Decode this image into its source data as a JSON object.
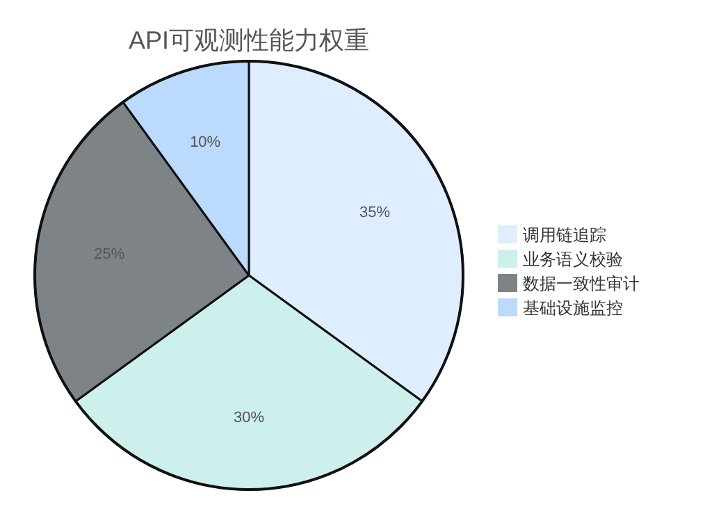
{
  "chart_data": {
    "type": "pie",
    "title": "API可观测性能力权重",
    "categories": [
      "调用链追踪",
      "业务语义校验",
      "数据一致性审计",
      "基础设施监控"
    ],
    "values": [
      35,
      30,
      25,
      10
    ],
    "value_labels": [
      "35%",
      "30%",
      "25%",
      "10%"
    ],
    "colors": [
      "#deeeff",
      "#cdf0ec",
      "#7e8388",
      "#bcdafd"
    ],
    "legend": "right"
  }
}
